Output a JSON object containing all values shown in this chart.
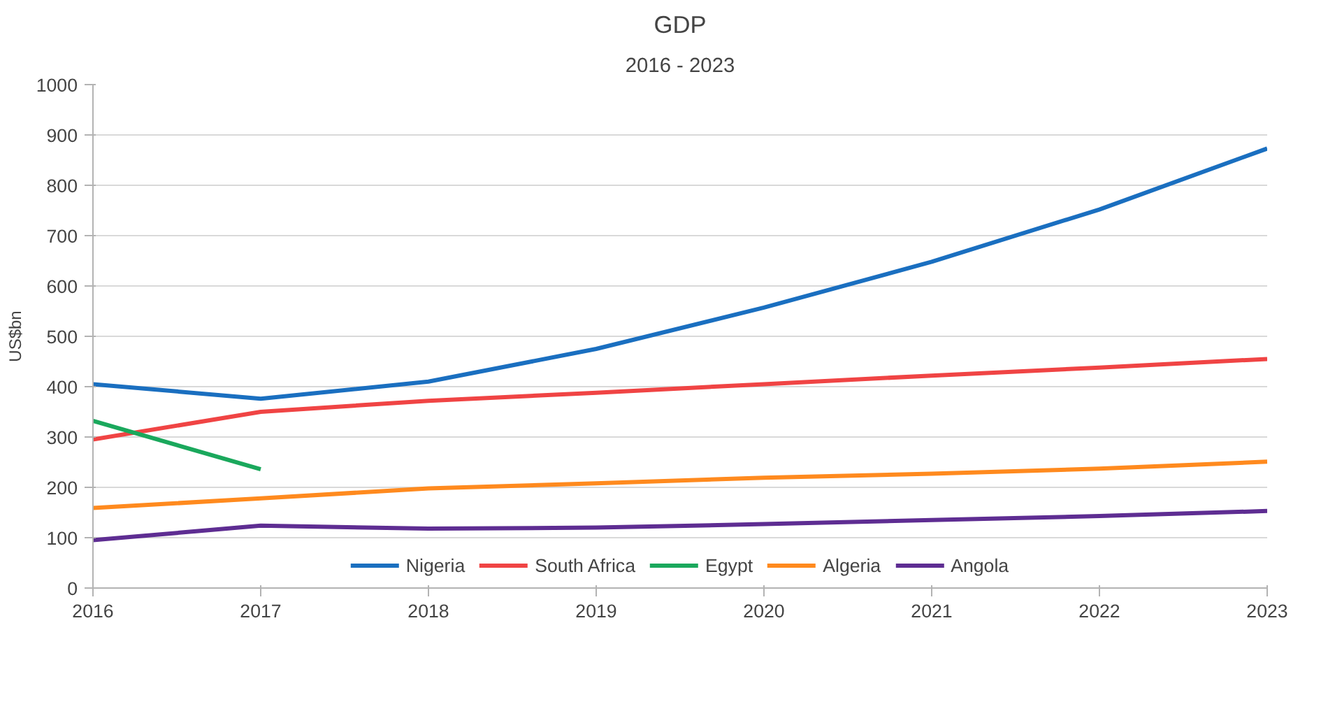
{
  "chart_data": {
    "type": "line",
    "title": "GDP",
    "subtitle": "2016 - 2023",
    "ylabel": "US$bn",
    "x": [
      2016,
      2017,
      2018,
      2019,
      2020,
      2021,
      2022,
      2023
    ],
    "xlim": [
      2016,
      2023
    ],
    "xticks": [
      2016,
      2017,
      2018,
      2019,
      2020,
      2021,
      2022,
      2023
    ],
    "ylim": [
      0,
      1000
    ],
    "yticks": [
      0,
      100,
      200,
      300,
      400,
      500,
      600,
      700,
      800,
      900,
      1000
    ],
    "grid": "y",
    "legend": "bottom",
    "marker": "none",
    "line_style": "solid",
    "series": [
      {
        "name": "Nigeria",
        "color": "#1a6fc0",
        "values": [
          405,
          376,
          410,
          475,
          557,
          648,
          752,
          873
        ]
      },
      {
        "name": "South Africa",
        "color": "#f04444",
        "values": [
          295,
          350,
          372,
          388,
          405,
          422,
          438,
          455
        ]
      },
      {
        "name": "Egypt",
        "color": "#1aa85c",
        "values": [
          332,
          236,
          null,
          null,
          null,
          null,
          null,
          null
        ]
      },
      {
        "name": "Algeria",
        "color": "#ff8a1e",
        "values": [
          159,
          178,
          198,
          208,
          219,
          227,
          237,
          251
        ]
      },
      {
        "name": "Angola",
        "color": "#5e2d92",
        "values": [
          95,
          124,
          118,
          120,
          127,
          135,
          143,
          153
        ]
      }
    ]
  }
}
